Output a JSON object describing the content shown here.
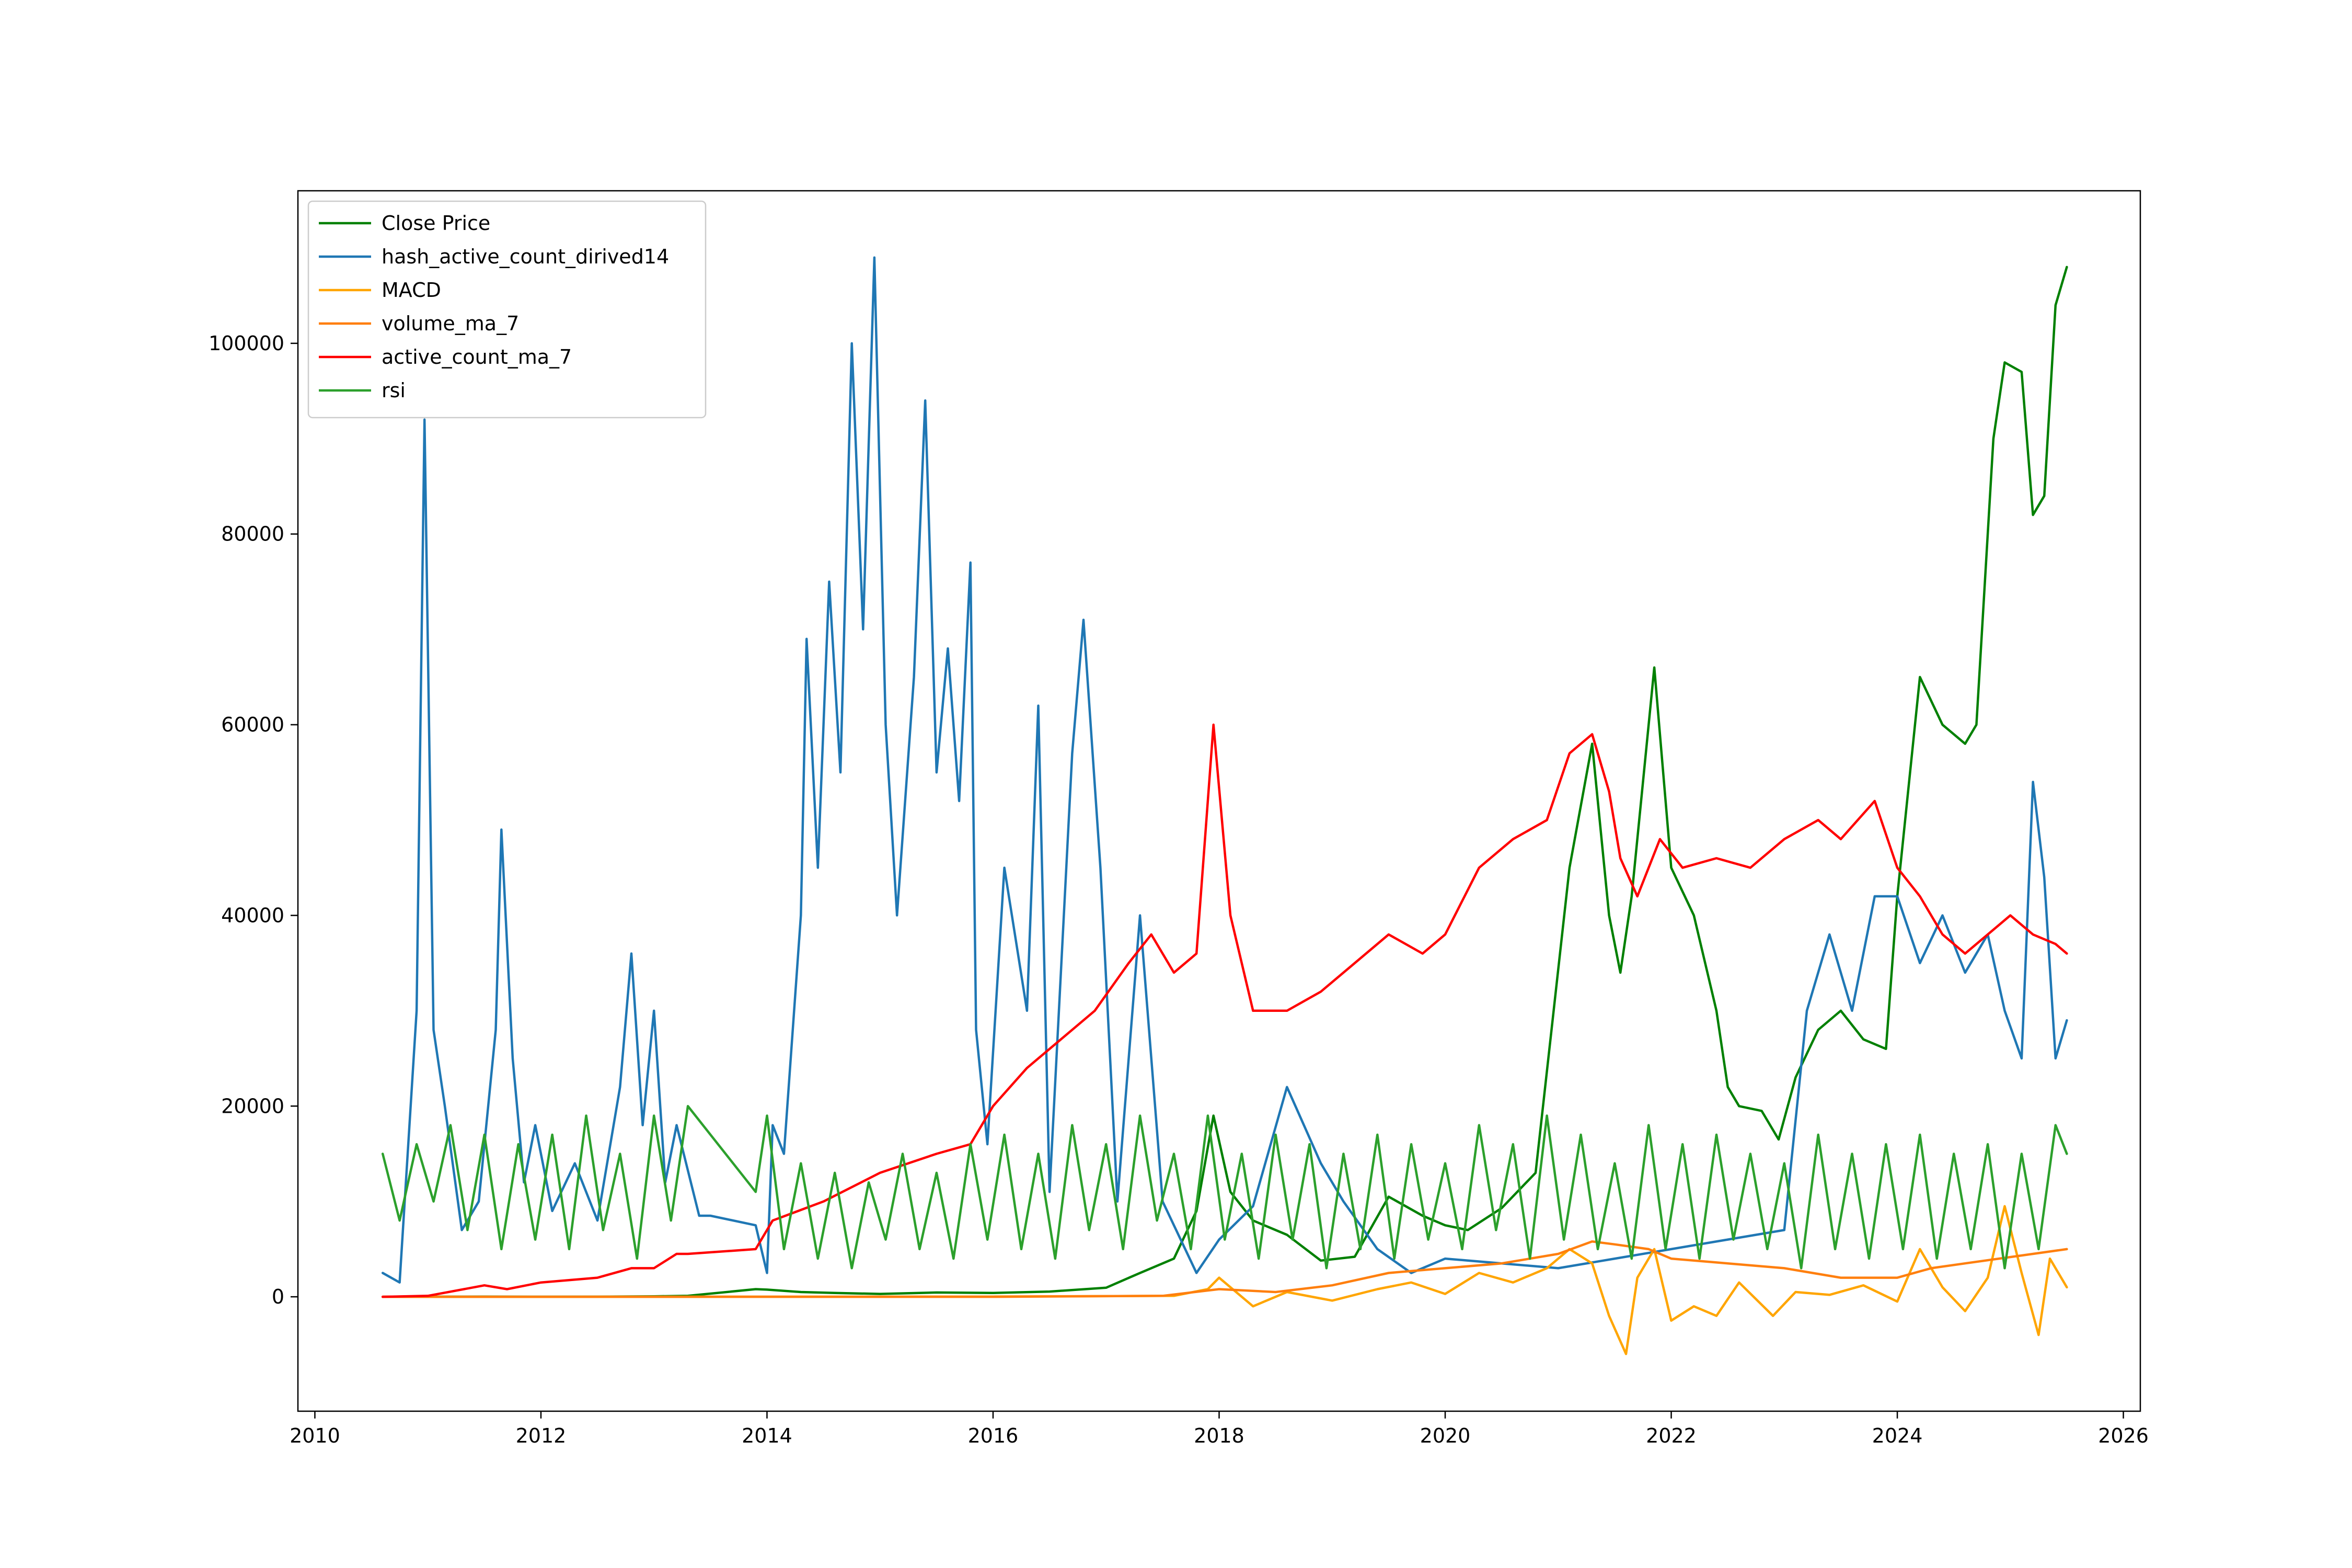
{
  "chart_data": {
    "type": "line",
    "title": "",
    "xlabel": "",
    "ylabel": "",
    "xlim": [
      2009.85,
      2026.15
    ],
    "ylim": [
      -12000,
      116000
    ],
    "x_ticks": [
      2010,
      2012,
      2014,
      2016,
      2018,
      2020,
      2022,
      2024,
      2026
    ],
    "x_tick_labels": [
      "2010",
      "2012",
      "2014",
      "2016",
      "2018",
      "2020",
      "2022",
      "2024",
      "2026"
    ],
    "y_ticks": [
      0,
      20000,
      40000,
      60000,
      80000,
      100000
    ],
    "y_tick_labels": [
      "0",
      "20000",
      "40000",
      "60000",
      "80000",
      "100000"
    ],
    "grid": false,
    "legend_position": "top-left",
    "series": [
      {
        "name": "Close Price",
        "color": "#008000",
        "x": [
          2010.6,
          2011.0,
          2011.5,
          2012.0,
          2012.5,
          2013.0,
          2013.3,
          2013.9,
          2014.0,
          2014.3,
          2014.6,
          2015.0,
          2015.5,
          2016.0,
          2016.5,
          2017.0,
          2017.3,
          2017.6,
          2017.8,
          2017.95,
          2018.1,
          2018.3,
          2018.6,
          2018.9,
          2019.2,
          2019.5,
          2019.8,
          2020.0,
          2020.2,
          2020.5,
          2020.8,
          2020.95,
          2021.1,
          2021.3,
          2021.45,
          2021.55,
          2021.65,
          2021.8,
          2021.85,
          2022.0,
          2022.2,
          2022.4,
          2022.5,
          2022.6,
          2022.8,
          2022.95,
          2023.1,
          2023.3,
          2023.5,
          2023.7,
          2023.9,
          2024.0,
          2024.2,
          2024.4,
          2024.6,
          2024.7,
          2024.85,
          2024.95,
          2025.1,
          2025.2,
          2025.3,
          2025.4,
          2025.5
        ],
        "y": [
          0,
          10,
          15,
          5,
          8,
          50,
          100,
          800,
          750,
          500,
          400,
          300,
          450,
          400,
          550,
          950,
          2500,
          4000,
          9000,
          19000,
          11000,
          8000,
          6500,
          3800,
          4200,
          10500,
          8500,
          7500,
          7000,
          9300,
          13000,
          29000,
          45000,
          58000,
          40000,
          34000,
          42000,
          60000,
          66000,
          45000,
          40000,
          30000,
          22000,
          20000,
          19500,
          16500,
          23000,
          28000,
          30000,
          27000,
          26000,
          42000,
          65000,
          60000,
          58000,
          60000,
          90000,
          98000,
          97000,
          82000,
          84000,
          104000,
          108000
        ]
      },
      {
        "name": "hash_active_count_dirived14",
        "color": "#1f77b4",
        "x": [
          2010.6,
          2010.75,
          2010.9,
          2010.97,
          2011.05,
          2011.15,
          2011.3,
          2011.45,
          2011.6,
          2011.65,
          2011.75,
          2011.85,
          2011.95,
          2012.1,
          2012.3,
          2012.5,
          2012.7,
          2012.8,
          2012.9,
          2013.0,
          2013.1,
          2013.2,
          2013.4,
          2013.5,
          2013.9,
          2014.0,
          2014.05,
          2014.15,
          2014.3,
          2014.35,
          2014.45,
          2014.55,
          2014.65,
          2014.75,
          2014.85,
          2014.95,
          2015.05,
          2015.15,
          2015.3,
          2015.4,
          2015.5,
          2015.6,
          2015.7,
          2015.8,
          2015.85,
          2015.95,
          2016.1,
          2016.3,
          2016.4,
          2016.5,
          2016.7,
          2016.8,
          2016.95,
          2017.1,
          2017.3,
          2017.5,
          2017.8,
          2018.0,
          2018.3,
          2018.6,
          2018.75,
          2018.9,
          2019.1,
          2019.4,
          2019.7,
          2020.0,
          2020.5,
          2021.0,
          2021.5,
          2022.0,
          2022.5,
          2023.0,
          2023.2,
          2023.4,
          2023.6,
          2023.8,
          2024.0,
          2024.2,
          2024.4,
          2024.6,
          2024.8,
          2024.95,
          2025.1,
          2025.2,
          2025.3,
          2025.4,
          2025.5
        ],
        "y": [
          2500,
          1500,
          30000,
          92000,
          28000,
          20000,
          7000,
          10000,
          28000,
          49000,
          25000,
          12000,
          18000,
          9000,
          14000,
          8000,
          22000,
          36000,
          18000,
          30000,
          12000,
          18000,
          8500,
          8500,
          7500,
          2500,
          18000,
          15000,
          40000,
          69000,
          45000,
          75000,
          55000,
          100000,
          70000,
          109000,
          60000,
          40000,
          65000,
          94000,
          55000,
          68000,
          52000,
          77000,
          28000,
          16000,
          45000,
          30000,
          62000,
          11000,
          57000,
          71000,
          45000,
          10000,
          40000,
          10000,
          2500,
          6000,
          9500,
          22000,
          18000,
          14000,
          10000,
          5000,
          2500,
          4000,
          3500,
          3000,
          4000,
          5000,
          6000,
          7000,
          30000,
          38000,
          30000,
          42000,
          42000,
          35000,
          40000,
          34000,
          38000,
          30000,
          25000,
          54000,
          44000,
          25000,
          29000
        ]
      },
      {
        "name": "MACD",
        "color": "#ffa500",
        "x": [
          2010.6,
          2012.0,
          2014.0,
          2016.0,
          2017.6,
          2017.9,
          2018.0,
          2018.3,
          2018.6,
          2019.0,
          2019.4,
          2019.7,
          2020.0,
          2020.3,
          2020.6,
          2020.9,
          2021.1,
          2021.3,
          2021.45,
          2021.6,
          2021.7,
          2021.85,
          2022.0,
          2022.2,
          2022.4,
          2022.6,
          2022.9,
          2023.1,
          2023.4,
          2023.7,
          2024.0,
          2024.2,
          2024.4,
          2024.6,
          2024.8,
          2024.95,
          2025.1,
          2025.25,
          2025.35,
          2025.5
        ],
        "y": [
          0,
          0,
          10,
          20,
          100,
          800,
          2000,
          -1000,
          500,
          -400,
          800,
          1500,
          300,
          2500,
          1500,
          3000,
          5000,
          3500,
          -2000,
          -6000,
          2000,
          5000,
          -2500,
          -1000,
          -2000,
          1500,
          -2000,
          500,
          200,
          1200,
          -500,
          5000,
          1000,
          -1500,
          2000,
          9500,
          2500,
          -4000,
          4000,
          1000
        ]
      },
      {
        "name": "volume_ma_7",
        "color": "#ff7f0e",
        "x": [
          2010.6,
          2012.0,
          2014.0,
          2016.0,
          2017.5,
          2018.0,
          2018.5,
          2019.0,
          2019.5,
          2020.0,
          2020.5,
          2021.0,
          2021.3,
          2021.5,
          2021.8,
          2022.0,
          2022.5,
          2023.0,
          2023.5,
          2024.0,
          2024.3,
          2024.6,
          2024.9,
          2025.2,
          2025.5
        ],
        "y": [
          0,
          0,
          0,
          0,
          100,
          800,
          500,
          1200,
          2500,
          3000,
          3500,
          4500,
          5800,
          5500,
          5000,
          4000,
          3500,
          3000,
          2000,
          2000,
          3000,
          3500,
          4000,
          4500,
          5000
        ]
      },
      {
        "name": "active_count_ma_7",
        "color": "#ff0000",
        "x": [
          2010.6,
          2011.0,
          2011.5,
          2011.7,
          2012.0,
          2012.5,
          2012.8,
          2013.0,
          2013.2,
          2013.3,
          2013.9,
          2014.05,
          2014.5,
          2015.0,
          2015.5,
          2015.8,
          2016.0,
          2016.3,
          2016.6,
          2016.9,
          2017.2,
          2017.4,
          2017.6,
          2017.8,
          2017.95,
          2018.1,
          2018.3,
          2018.6,
          2018.9,
          2019.2,
          2019.5,
          2019.8,
          2020.0,
          2020.3,
          2020.6,
          2020.9,
          2021.1,
          2021.3,
          2021.45,
          2021.55,
          2021.7,
          2021.9,
          2022.1,
          2022.4,
          2022.7,
          2023.0,
          2023.3,
          2023.5,
          2023.8,
          2024.0,
          2024.2,
          2024.4,
          2024.6,
          2024.8,
          2025.0,
          2025.2,
          2025.4,
          2025.5
        ],
        "y": [
          0,
          100,
          1200,
          800,
          1500,
          2000,
          3000,
          3000,
          4500,
          4500,
          5000,
          8000,
          10000,
          13000,
          15000,
          16000,
          20000,
          24000,
          27000,
          30000,
          35000,
          38000,
          34000,
          36000,
          60000,
          40000,
          30000,
          30000,
          32000,
          35000,
          38000,
          36000,
          38000,
          45000,
          48000,
          50000,
          57000,
          59000,
          53000,
          46000,
          42000,
          48000,
          45000,
          46000,
          45000,
          48000,
          50000,
          48000,
          52000,
          45000,
          42000,
          38000,
          36000,
          38000,
          40000,
          38000,
          37000,
          36000
        ]
      },
      {
        "name": "rsi",
        "color": "#2ca02c",
        "x": [
          2010.6,
          2010.75,
          2010.9,
          2011.05,
          2011.2,
          2011.35,
          2011.5,
          2011.65,
          2011.8,
          2011.95,
          2012.1,
          2012.25,
          2012.4,
          2012.55,
          2012.7,
          2012.85,
          2013.0,
          2013.15,
          2013.3,
          2013.9,
          2014.0,
          2014.15,
          2014.3,
          2014.45,
          2014.6,
          2014.75,
          2014.9,
          2015.05,
          2015.2,
          2015.35,
          2015.5,
          2015.65,
          2015.8,
          2015.95,
          2016.1,
          2016.25,
          2016.4,
          2016.55,
          2016.7,
          2016.85,
          2017.0,
          2017.15,
          2017.3,
          2017.45,
          2017.6,
          2017.75,
          2017.9,
          2018.05,
          2018.2,
          2018.35,
          2018.5,
          2018.65,
          2018.8,
          2018.95,
          2019.1,
          2019.25,
          2019.4,
          2019.55,
          2019.7,
          2019.85,
          2020.0,
          2020.15,
          2020.3,
          2020.45,
          2020.6,
          2020.75,
          2020.9,
          2021.05,
          2021.2,
          2021.35,
          2021.5,
          2021.65,
          2021.8,
          2021.95,
          2022.1,
          2022.25,
          2022.4,
          2022.55,
          2022.7,
          2022.85,
          2023.0,
          2023.15,
          2023.3,
          2023.45,
          2023.6,
          2023.75,
          2023.9,
          2024.05,
          2024.2,
          2024.35,
          2024.5,
          2024.65,
          2024.8,
          2024.95,
          2025.1,
          2025.25,
          2025.4,
          2025.5
        ],
        "y": [
          15000,
          8000,
          16000,
          10000,
          18000,
          7000,
          17000,
          5000,
          16000,
          6000,
          17000,
          5000,
          19000,
          7000,
          15000,
          4000,
          19000,
          8000,
          20000,
          11000,
          19000,
          5000,
          14000,
          4000,
          13000,
          3000,
          12000,
          6000,
          15000,
          5000,
          13000,
          4000,
          16000,
          6000,
          17000,
          5000,
          15000,
          4000,
          18000,
          7000,
          16000,
          5000,
          19000,
          8000,
          15000,
          5000,
          19000,
          6000,
          15000,
          4000,
          17000,
          6000,
          16000,
          3000,
          15000,
          5000,
          17000,
          4000,
          16000,
          6000,
          14000,
          5000,
          18000,
          7000,
          16000,
          4000,
          19000,
          6000,
          17000,
          5000,
          14000,
          4000,
          18000,
          5000,
          16000,
          4000,
          17000,
          6000,
          15000,
          5000,
          14000,
          3000,
          17000,
          5000,
          15000,
          4000,
          16000,
          5000,
          17000,
          4000,
          15000,
          5000,
          16000,
          3000,
          15000,
          5000,
          18000,
          15000
        ]
      }
    ]
  }
}
